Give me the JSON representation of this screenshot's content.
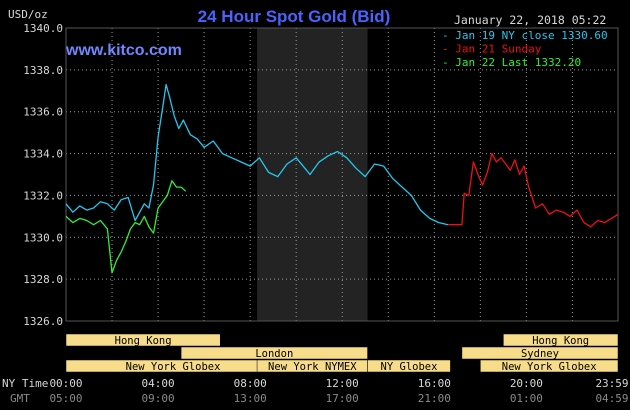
{
  "title": "24 Hour Spot Gold (Bid)",
  "website": "www.kitco.com",
  "timestamp": "January 22, 2018 05:22",
  "y_unit_label": "USD/oz",
  "row_labels": {
    "ny_time": "NY Time",
    "gmt": "GMT"
  },
  "colors": {
    "background": "#000000",
    "title": "#4a62ff",
    "website": "#6f88ff",
    "cyan": "#22c8ee",
    "red": "#ee1111",
    "green": "#33ee33",
    "session_box": "#f7dd8a",
    "grid": "#9a9a9a"
  },
  "legend": [
    {
      "label": "Jan 19 NY close 1330.60",
      "color": "#22c8ee"
    },
    {
      "label": "Jan 21 Sunday",
      "color": "#ee1111"
    },
    {
      "label": "Jan 22 Last 1332.20",
      "color": "#33ee33"
    }
  ],
  "sessions": [
    {
      "label": "Hong Kong",
      "start": 0.0,
      "end": 6.7
    },
    {
      "label": "London",
      "start": 5.0,
      "end": 13.1
    },
    {
      "label": "New York Globex",
      "start": 0.0,
      "end": 9.3
    },
    {
      "label": "New York NYMEX",
      "start": 8.3,
      "end": 13.1
    },
    {
      "label": "NY Globex",
      "start": 13.1,
      "end": 16.7
    },
    {
      "label": "Hong Kong",
      "start": 19.0,
      "end": 23.98
    },
    {
      "label": "Sydney",
      "start": 17.2,
      "end": 23.98
    },
    {
      "label": "New York Globex",
      "start": 18.0,
      "end": 23.98
    }
  ],
  "chart_data": {
    "type": "line",
    "title": "24 Hour Spot Gold (Bid)",
    "ylabel": "USD/oz",
    "ylim": [
      1326.0,
      1340.0
    ],
    "yticks": [
      "1340.0",
      "1338.0",
      "1336.0",
      "1334.0",
      "1332.0",
      "1330.0",
      "1328.0",
      "1326.0"
    ],
    "xlim": [
      0,
      23.98
    ],
    "xticks_ny": [
      "00:00",
      "04:00",
      "08:00",
      "12:00",
      "16:00",
      "20:00",
      "23:59"
    ],
    "xticks_gmt": [
      "05:00",
      "09:00",
      "13:00",
      "17:00",
      "21:00",
      "01:00",
      "04:59"
    ],
    "grid": true,
    "legend_position": "top-right",
    "series": [
      {
        "name": "Jan 19 NY close 1330.60",
        "color": "#22c8ee",
        "x": [
          0,
          0.3,
          0.6,
          0.9,
          1.2,
          1.5,
          1.8,
          2.1,
          2.4,
          2.7,
          3.0,
          3.2,
          3.4,
          3.6,
          3.8,
          4.0,
          4.2,
          4.35,
          4.5,
          4.7,
          4.9,
          5.1,
          5.4,
          5.7,
          6.0,
          6.4,
          6.8,
          7.2,
          7.6,
          8.0,
          8.4,
          8.8,
          9.2,
          9.6,
          10.0,
          10.3,
          10.6,
          11.0,
          11.4,
          11.8,
          12.2,
          12.6,
          13.0,
          13.4,
          13.8,
          14.2,
          14.6,
          15.0,
          15.4,
          15.8,
          16.2,
          16.6
        ],
        "y": [
          1331.6,
          1331.2,
          1331.5,
          1331.3,
          1331.4,
          1331.7,
          1331.6,
          1331.3,
          1331.8,
          1331.9,
          1330.8,
          1331.2,
          1331.6,
          1331.4,
          1332.5,
          1334.8,
          1336.2,
          1337.3,
          1336.7,
          1335.8,
          1335.2,
          1335.6,
          1334.9,
          1334.7,
          1334.3,
          1334.6,
          1334.0,
          1333.8,
          1333.6,
          1333.4,
          1333.8,
          1333.1,
          1332.9,
          1333.5,
          1333.8,
          1333.4,
          1333.0,
          1333.6,
          1333.9,
          1334.1,
          1333.8,
          1333.3,
          1332.9,
          1333.5,
          1333.4,
          1332.8,
          1332.4,
          1332.0,
          1331.3,
          1330.9,
          1330.7,
          1330.6
        ]
      },
      {
        "name": "Jan 21 Sunday",
        "color": "#ee1111",
        "x": [
          16.6,
          16.8,
          17.0,
          17.2,
          17.3,
          17.5,
          17.7,
          17.9,
          18.1,
          18.3,
          18.5,
          18.7,
          18.9,
          19.1,
          19.3,
          19.5,
          19.7,
          19.9,
          20.1,
          20.4,
          20.7,
          21.0,
          21.3,
          21.6,
          21.9,
          22.2,
          22.5,
          22.8,
          23.1,
          23.4,
          23.7,
          23.98
        ],
        "y": [
          1330.6,
          1330.6,
          1330.6,
          1330.6,
          1332.1,
          1332.0,
          1333.6,
          1333.0,
          1332.5,
          1333.1,
          1334.0,
          1333.6,
          1333.8,
          1333.5,
          1333.2,
          1333.7,
          1333.0,
          1333.4,
          1332.4,
          1331.4,
          1331.6,
          1331.1,
          1331.3,
          1331.2,
          1331.0,
          1331.3,
          1330.7,
          1330.5,
          1330.8,
          1330.7,
          1330.9,
          1331.1
        ]
      },
      {
        "name": "Jan 22 Last 1332.20",
        "color": "#33ee33",
        "x": [
          0,
          0.3,
          0.6,
          0.9,
          1.2,
          1.5,
          1.8,
          2.0,
          2.2,
          2.4,
          2.6,
          2.8,
          3.0,
          3.2,
          3.4,
          3.6,
          3.8,
          4.0,
          4.2,
          4.4,
          4.6,
          4.8,
          5.0,
          5.2
        ],
        "y": [
          1331.0,
          1330.7,
          1330.9,
          1330.8,
          1330.6,
          1330.8,
          1330.4,
          1328.3,
          1328.9,
          1329.3,
          1329.8,
          1330.4,
          1330.7,
          1330.6,
          1331.0,
          1330.5,
          1330.2,
          1331.4,
          1331.7,
          1332.0,
          1332.7,
          1332.4,
          1332.4,
          1332.2
        ]
      }
    ]
  }
}
